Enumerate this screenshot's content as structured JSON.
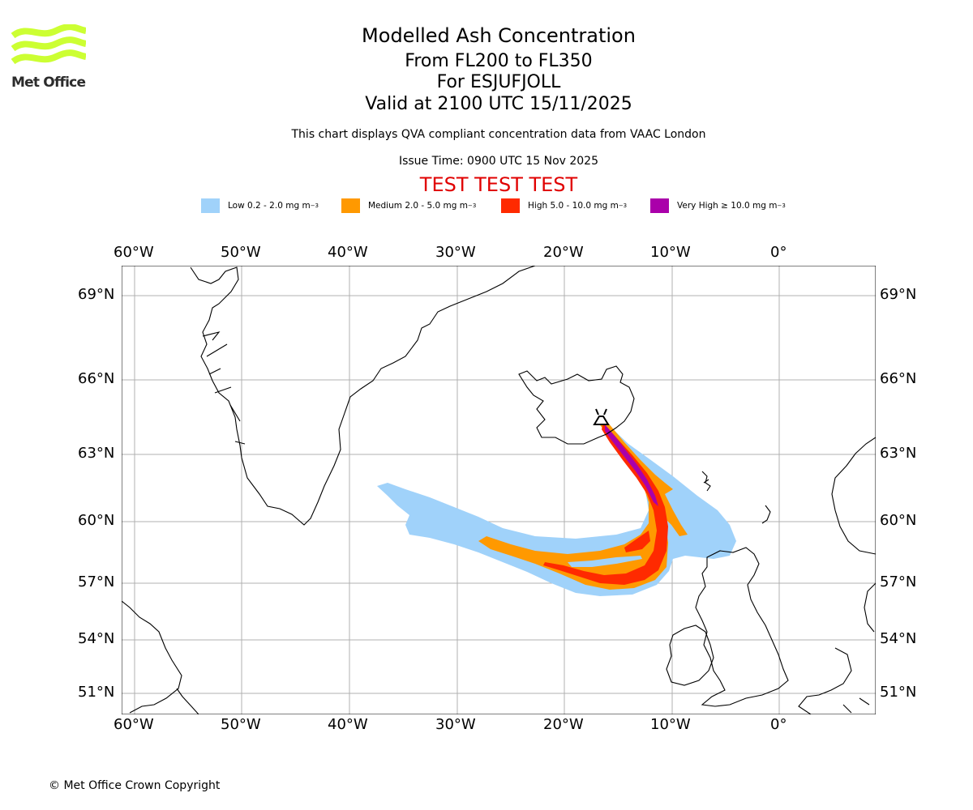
{
  "header": {
    "title": "Modelled Ash Concentration",
    "level_range": "From FL200 to FL350",
    "volcano": "For ESJUFJOLL",
    "valid_time": "Valid at 2100 UTC 15/11/2025",
    "disclaimer": "This chart displays QVA compliant concentration data from VAAC London",
    "issue_time": "Issue Time: 0900 UTC 15 Nov 2025",
    "test_banner": "TEST TEST TEST"
  },
  "logo": {
    "text": "Met Office",
    "color": "#ccff33"
  },
  "legend": [
    {
      "label": "Low 0.2 - 2.0 mg m",
      "unit_exp": "−3",
      "color": "#a0d2fa"
    },
    {
      "label": "Medium 2.0 - 5.0 mg m",
      "unit_exp": "−3",
      "color": "#ff9900"
    },
    {
      "label": "High 5.0 - 10.0 mg m",
      "unit_exp": "−3",
      "color": "#ff2a00"
    },
    {
      "label": "Very High ≥ 10.0 mg m",
      "unit_exp": "−3",
      "color": "#aa00aa"
    }
  ],
  "map": {
    "lon_ticks": [
      "60°W",
      "50°W",
      "40°W",
      "30°W",
      "20°W",
      "10°W",
      "0°"
    ],
    "lat_ticks": [
      "69°N",
      "66°N",
      "63°N",
      "60°N",
      "57°N",
      "54°N",
      "51°N"
    ],
    "volcano_icon": "volcano-icon"
  },
  "footer": {
    "copyright": "© Met Office Crown Copyright"
  }
}
